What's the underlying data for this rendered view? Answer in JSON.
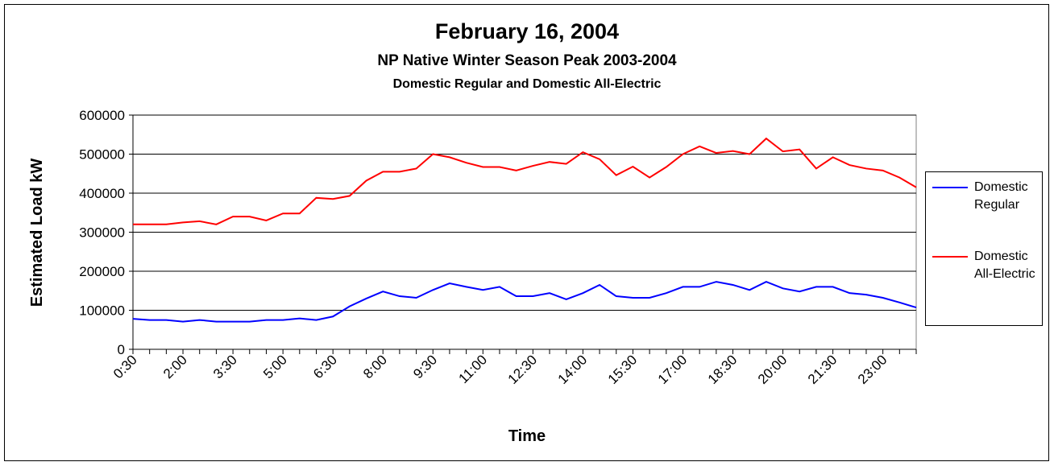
{
  "chart_data": {
    "type": "line",
    "title": "February 16, 2004",
    "subtitle": "NP Native Winter Season Peak 2003-2004",
    "subtitle2": "Domestic Regular and Domestic All-Electric",
    "x_label": "Time",
    "y_label": "Estimated Load kW",
    "categories": [
      "0:30",
      null,
      null,
      "2:00",
      null,
      null,
      "3:30",
      null,
      null,
      "5:00",
      null,
      null,
      "6:30",
      null,
      null,
      "8:00",
      null,
      null,
      "9:30",
      null,
      null,
      "11:00",
      null,
      null,
      "12:30",
      null,
      null,
      "14:00",
      null,
      null,
      "15:30",
      null,
      null,
      "17:00",
      null,
      null,
      "18:30",
      null,
      null,
      "20:00",
      null,
      null,
      "21:30",
      null,
      null,
      "23:00",
      null,
      null
    ],
    "series": [
      {
        "name": "Domestic Regular",
        "color": "#0000ff",
        "values": [
          78000,
          75000,
          75000,
          71000,
          75000,
          71000,
          71000,
          71000,
          75000,
          75000,
          79000,
          75000,
          84000,
          110000,
          130000,
          148000,
          136000,
          132000,
          152000,
          169000,
          160000,
          152000,
          160000,
          136000,
          136000,
          144000,
          128000,
          144000,
          165000,
          136000,
          132000,
          132000,
          144000,
          160000,
          160000,
          173000,
          165000,
          152000,
          173000,
          156000,
          148000,
          160000,
          160000,
          144000,
          140000,
          132000,
          120000,
          107000
        ]
      },
      {
        "name": "Domestic All-Electric",
        "color": "#ff0000",
        "values": [
          320000,
          320000,
          320000,
          325000,
          328000,
          320000,
          340000,
          340000,
          330000,
          348000,
          348000,
          388000,
          385000,
          393000,
          432000,
          455000,
          455000,
          463000,
          500000,
          492000,
          478000,
          467000,
          467000,
          458000,
          470000,
          480000,
          475000,
          505000,
          487000,
          446000,
          468000,
          440000,
          467000,
          500000,
          520000,
          503000,
          508000,
          500000,
          540000,
          507000,
          512000,
          463000,
          492000,
          472000,
          463000,
          458000,
          440000,
          415000
        ]
      }
    ],
    "ylim": [
      0,
      600000
    ],
    "yticks": [
      0,
      100000,
      200000,
      300000,
      400000,
      500000,
      600000
    ],
    "grid": true,
    "legend": "right"
  }
}
